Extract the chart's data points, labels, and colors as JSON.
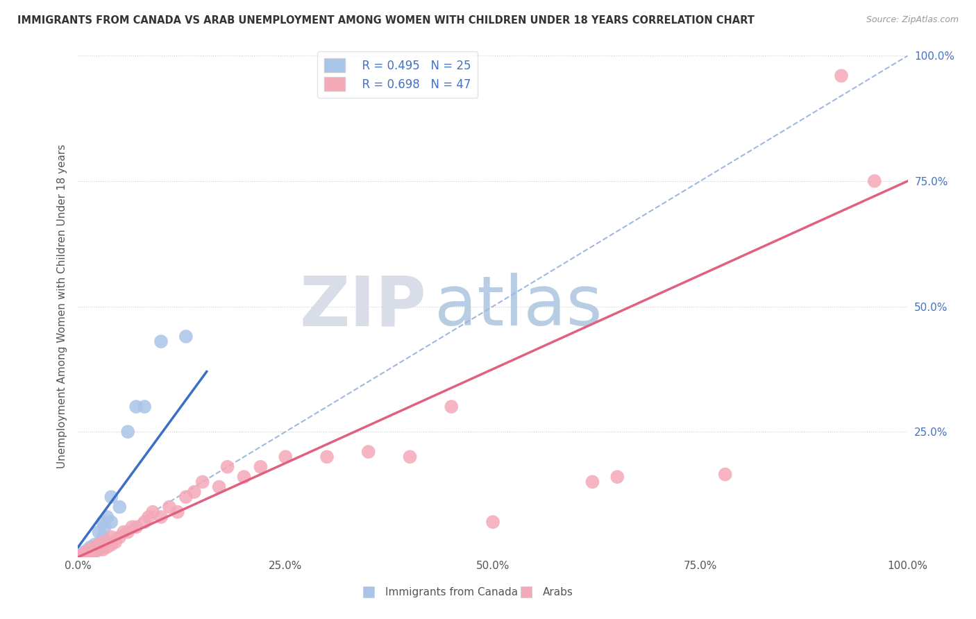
{
  "title": "IMMIGRANTS FROM CANADA VS ARAB UNEMPLOYMENT AMONG WOMEN WITH CHILDREN UNDER 18 YEARS CORRELATION CHART",
  "source": "Source: ZipAtlas.com",
  "ylabel": "Unemployment Among Women with Children Under 18 years",
  "xlim": [
    0,
    1.0
  ],
  "ylim": [
    0,
    1.0
  ],
  "xtick_labels": [
    "0.0%",
    "25.0%",
    "50.0%",
    "75.0%",
    "100.0%"
  ],
  "xtick_vals": [
    0.0,
    0.25,
    0.5,
    0.75,
    1.0
  ],
  "ytick_vals": [
    0.25,
    0.5,
    0.75,
    1.0
  ],
  "right_ytick_labels": [
    "25.0%",
    "50.0%",
    "75.0%",
    "100.0%"
  ],
  "right_ytick_vals": [
    0.25,
    0.5,
    0.75,
    1.0
  ],
  "legend_R_canada": "R = 0.495",
  "legend_N_canada": "N = 25",
  "legend_R_arab": "R = 0.698",
  "legend_N_arab": "N = 47",
  "canada_color": "#a8c4e8",
  "arab_color": "#f4a8b8",
  "canada_line_color": "#3a6fc4",
  "arab_line_color": "#e06080",
  "diagonal_color": "#a0b8e0",
  "watermark_zip": "ZIP",
  "watermark_atlas": "atlas",
  "watermark_zip_color": "#d8dde8",
  "watermark_atlas_color": "#b8cce4",
  "background_color": "#ffffff",
  "canada_line_x0": 0.0,
  "canada_line_y0": 0.02,
  "canada_line_x1": 0.155,
  "canada_line_y1": 0.37,
  "arab_line_x0": 0.0,
  "arab_line_y0": 0.0,
  "arab_line_x1": 1.0,
  "arab_line_y1": 0.75,
  "canada_scatter_x": [
    0.005,
    0.007,
    0.01,
    0.012,
    0.015,
    0.015,
    0.018,
    0.02,
    0.02,
    0.022,
    0.025,
    0.025,
    0.03,
    0.03,
    0.03,
    0.032,
    0.035,
    0.04,
    0.04,
    0.05,
    0.06,
    0.07,
    0.08,
    0.1,
    0.13
  ],
  "canada_scatter_y": [
    0.005,
    0.01,
    0.008,
    0.015,
    0.01,
    0.02,
    0.015,
    0.01,
    0.025,
    0.02,
    0.02,
    0.05,
    0.02,
    0.04,
    0.07,
    0.06,
    0.08,
    0.07,
    0.12,
    0.1,
    0.25,
    0.3,
    0.3,
    0.43,
    0.44
  ],
  "arab_scatter_x": [
    0.005,
    0.008,
    0.01,
    0.012,
    0.015,
    0.015,
    0.018,
    0.02,
    0.02,
    0.022,
    0.025,
    0.025,
    0.03,
    0.03,
    0.035,
    0.04,
    0.04,
    0.045,
    0.05,
    0.055,
    0.06,
    0.065,
    0.07,
    0.08,
    0.085,
    0.09,
    0.1,
    0.11,
    0.12,
    0.13,
    0.14,
    0.15,
    0.17,
    0.18,
    0.2,
    0.22,
    0.25,
    0.3,
    0.35,
    0.4,
    0.45,
    0.5,
    0.62,
    0.65,
    0.78,
    0.92,
    0.96
  ],
  "arab_scatter_y": [
    0.005,
    0.008,
    0.01,
    0.01,
    0.008,
    0.015,
    0.01,
    0.012,
    0.02,
    0.015,
    0.015,
    0.025,
    0.015,
    0.03,
    0.02,
    0.025,
    0.04,
    0.03,
    0.04,
    0.05,
    0.05,
    0.06,
    0.06,
    0.07,
    0.08,
    0.09,
    0.08,
    0.1,
    0.09,
    0.12,
    0.13,
    0.15,
    0.14,
    0.18,
    0.16,
    0.18,
    0.2,
    0.2,
    0.21,
    0.2,
    0.3,
    0.07,
    0.15,
    0.16,
    0.165,
    0.96,
    0.75
  ]
}
